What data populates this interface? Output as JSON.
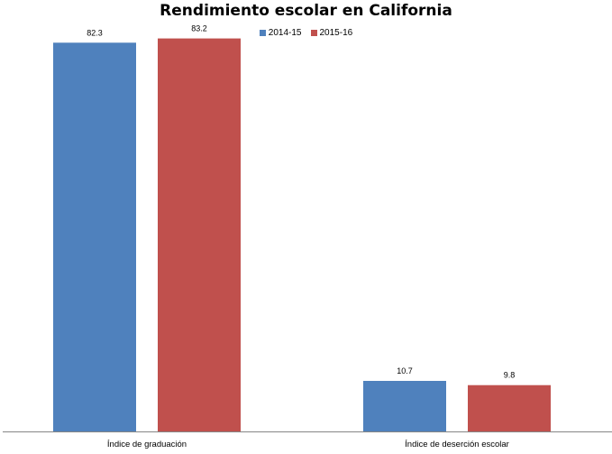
{
  "chart_data": {
    "type": "bar",
    "title": "Rendimiento escolar en California",
    "categories": [
      "Índice de graduación",
      "Índice de deserción escolar"
    ],
    "series": [
      {
        "name": "2014-15",
        "color": "#4F81BD",
        "values": [
          82.3,
          10.7
        ]
      },
      {
        "name": "2015-16",
        "color": "#C0504D",
        "values": [
          83.2,
          9.8
        ]
      }
    ],
    "data_labels": [
      [
        "82.3",
        "10.7"
      ],
      [
        "83.2",
        "9.8"
      ]
    ],
    "ylim": [
      0,
      90
    ],
    "grid": false,
    "legend_position": "top"
  }
}
